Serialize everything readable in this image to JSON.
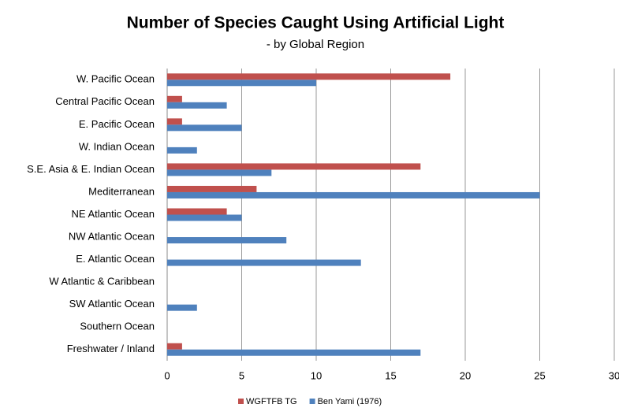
{
  "chart_data": {
    "type": "hbar",
    "title": "Number of Species Caught Using Artificial Light",
    "subtitle": "- by Global Region",
    "categories": [
      "W. Pacific Ocean",
      "Central Pacific Ocean",
      "E. Pacific Ocean",
      "W. Indian Ocean",
      "S.E. Asia & E. Indian Ocean",
      "Mediterranean",
      "NE Atlantic Ocean",
      "NW Atlantic Ocean",
      "E. Atlantic Ocean",
      "W Atlantic & Caribbean",
      "SW Atlantic Ocean",
      "Southern Ocean",
      "Freshwater / Inland"
    ],
    "series": [
      {
        "name": "WGFTFB TG",
        "color": "#c0504d",
        "values": [
          19,
          1,
          1,
          0,
          17,
          6,
          4,
          0,
          0,
          0,
          0,
          0,
          1
        ]
      },
      {
        "name": "Ben Yami  (1976)",
        "color": "#4f81bd",
        "values": [
          10,
          4,
          5,
          2,
          7,
          25,
          5,
          8,
          13,
          0,
          2,
          0,
          17
        ]
      }
    ],
    "xlim": [
      0,
      30
    ],
    "xticks": [
      0,
      5,
      10,
      15,
      20,
      25,
      30
    ],
    "grid": true,
    "legend": "bottom"
  }
}
